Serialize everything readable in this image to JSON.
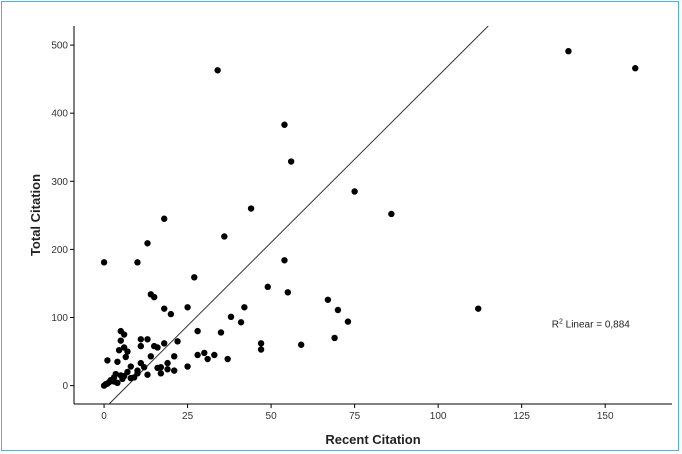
{
  "chart_data": {
    "type": "scatter",
    "title": "",
    "xlabel": "Recent Citation",
    "ylabel": "Total Citation",
    "xlim": [
      -9,
      170
    ],
    "ylim": [
      -27,
      528
    ],
    "x_ticks": [
      0,
      25,
      50,
      75,
      100,
      125,
      150
    ],
    "y_ticks": [
      0,
      100,
      200,
      300,
      400,
      500
    ],
    "grid": false,
    "legend": "none",
    "fit_line": {
      "points": [
        [
          1.5,
          -27
        ],
        [
          115,
          528
        ]
      ],
      "annotation": {
        "base": "R",
        "sup": "2",
        "rest": " Linear = 0,884",
        "x": 134,
        "y": 85
      }
    },
    "marker_color": "#000000",
    "points": [
      [
        0,
        0
      ],
      [
        0.5,
        2
      ],
      [
        1,
        3
      ],
      [
        1.5,
        5
      ],
      [
        1,
        37
      ],
      [
        0,
        181
      ],
      [
        2,
        8
      ],
      [
        3,
        12
      ],
      [
        3,
        6
      ],
      [
        4,
        4
      ],
      [
        3.5,
        17
      ],
      [
        4,
        35
      ],
      [
        4.5,
        52
      ],
      [
        5,
        15
      ],
      [
        5,
        66
      ],
      [
        5,
        80
      ],
      [
        5.5,
        10
      ],
      [
        6,
        14
      ],
      [
        6,
        56
      ],
      [
        6,
        75
      ],
      [
        6.5,
        42
      ],
      [
        7,
        50
      ],
      [
        7,
        20
      ],
      [
        8,
        28
      ],
      [
        8,
        11
      ],
      [
        9,
        12
      ],
      [
        10,
        18
      ],
      [
        10,
        22
      ],
      [
        10,
        181
      ],
      [
        11,
        33
      ],
      [
        11,
        58
      ],
      [
        11,
        68
      ],
      [
        12,
        27
      ],
      [
        13,
        16
      ],
      [
        13,
        68
      ],
      [
        13,
        209
      ],
      [
        14,
        134
      ],
      [
        14,
        43
      ],
      [
        15,
        130
      ],
      [
        15,
        58
      ],
      [
        16,
        26
      ],
      [
        16,
        56
      ],
      [
        17,
        18
      ],
      [
        17,
        27
      ],
      [
        18,
        245
      ],
      [
        18,
        113
      ],
      [
        18,
        62
      ],
      [
        19,
        33
      ],
      [
        19,
        24
      ],
      [
        20,
        105
      ],
      [
        21,
        43
      ],
      [
        21,
        22
      ],
      [
        22,
        65
      ],
      [
        25,
        115
      ],
      [
        25,
        28
      ],
      [
        27,
        159
      ],
      [
        28,
        80
      ],
      [
        28,
        45
      ],
      [
        30,
        48
      ],
      [
        31,
        39
      ],
      [
        33,
        45
      ],
      [
        34,
        463
      ],
      [
        35,
        78
      ],
      [
        36,
        219
      ],
      [
        37,
        39
      ],
      [
        38,
        101
      ],
      [
        41,
        93
      ],
      [
        42,
        115
      ],
      [
        44,
        260
      ],
      [
        47,
        62
      ],
      [
        47,
        53
      ],
      [
        49,
        145
      ],
      [
        54,
        383
      ],
      [
        54,
        184
      ],
      [
        55,
        137
      ],
      [
        56,
        329
      ],
      [
        59,
        60
      ],
      [
        67,
        126
      ],
      [
        69,
        70
      ],
      [
        70,
        111
      ],
      [
        73,
        94
      ],
      [
        75,
        285
      ],
      [
        86,
        252
      ],
      [
        112,
        113
      ],
      [
        139,
        491
      ],
      [
        159,
        466
      ]
    ]
  }
}
